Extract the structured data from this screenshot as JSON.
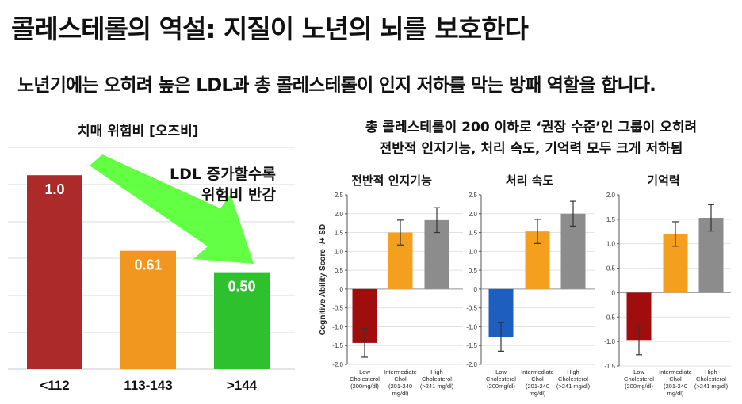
{
  "header": {
    "title": "콜레스테롤의 역설: 지질이 노년의 뇌를 보호한다",
    "subtitle": "노년기에는 오히려 높은 LDL과 총 콜레스테롤이 인지 저하를 막는 방패 역할을 합니다."
  },
  "left_panel": {
    "title": "치매 위험비 [오즈비]",
    "annotation_line1": "LDL 증가할수록",
    "annotation_line2": "위험비 반감"
  },
  "right_panel": {
    "title_line1": "총 콜레스테롤이 200 이하로 ‘권장 수준’인 그룹이 오히려",
    "title_line2": "전반적 인지기능, 처리 속도, 기억력 모두 크게 저하됨"
  },
  "chart_data": [
    {
      "type": "bar",
      "categories": [
        "<112",
        "113-143",
        ">144"
      ],
      "values": [
        1.0,
        0.61,
        0.5
      ],
      "data_labels": [
        "1.0",
        "0.61",
        "0.50"
      ],
      "colors": [
        "#ad2a2a",
        "#f1961f",
        "#2ec12e"
      ],
      "ylim": [
        0,
        1.25
      ],
      "grid": true,
      "arrow_color": "#55ff33"
    },
    {
      "type": "bar",
      "title": "전반적 인지기능",
      "ylabel": "Cognitive Ability Score -/+ SD",
      "ylim": [
        -2.0,
        2.5
      ],
      "yticks": [
        "2.5",
        "2.0",
        "1.5",
        "1.0",
        "0.5",
        "0",
        "-0.5",
        "-1.0",
        "-1.5",
        "-2.0"
      ],
      "categories": [
        [
          "Low",
          "Cholesterol",
          "(200mg/dl)"
        ],
        [
          "Intermediate",
          "Chol",
          "(201-240",
          "mg/dl)"
        ],
        [
          "High",
          "Cholesterol",
          "(>241 mg/dl)"
        ]
      ],
      "values": [
        -1.43,
        1.5,
        1.83
      ],
      "errors": [
        0.38,
        0.33,
        0.33
      ],
      "colors": [
        "#a00d0d",
        "#f4a01e",
        "#8c8c8c"
      ],
      "grid": true
    },
    {
      "type": "bar",
      "title": "처리 속도",
      "ylim": [
        -2.0,
        2.5
      ],
      "yticks": [
        "2.5",
        "2.0",
        "1.5",
        "1.0",
        "0.5",
        "0",
        "-0.5",
        "-1.0",
        "-1.5",
        "-2.0"
      ],
      "categories": [
        [
          "Low",
          "Cholesterol",
          "(200mg/dl)"
        ],
        [
          "Intermediate",
          "Chol",
          "(201-240",
          "mg/dl)"
        ],
        [
          "High",
          "Cholesterol",
          "(>241 mg/dl)"
        ]
      ],
      "values": [
        -1.27,
        1.53,
        2.0
      ],
      "errors": [
        0.38,
        0.32,
        0.33
      ],
      "colors": [
        "#1d5fbf",
        "#f4a01e",
        "#8c8c8c"
      ],
      "grid": true
    },
    {
      "type": "bar",
      "title": "기억력",
      "ylim": [
        -1.5,
        2.0
      ],
      "yticks": [
        "2.0",
        "1.5",
        "1.0",
        "0.5",
        "0",
        "-0.5",
        "-1.0",
        "-1.5"
      ],
      "categories": [
        [
          "Low",
          "Cholesterol",
          "(200mg/dl)"
        ],
        [
          "Intermediate",
          "Chol",
          "(201-240",
          "mg/dl)"
        ],
        [
          "High",
          "Cholesterol",
          "(>241 mg/dl)"
        ]
      ],
      "values": [
        -0.97,
        1.2,
        1.53
      ],
      "errors": [
        0.3,
        0.25,
        0.27
      ],
      "colors": [
        "#a00d0d",
        "#f4a01e",
        "#8c8c8c"
      ],
      "grid": true
    }
  ]
}
